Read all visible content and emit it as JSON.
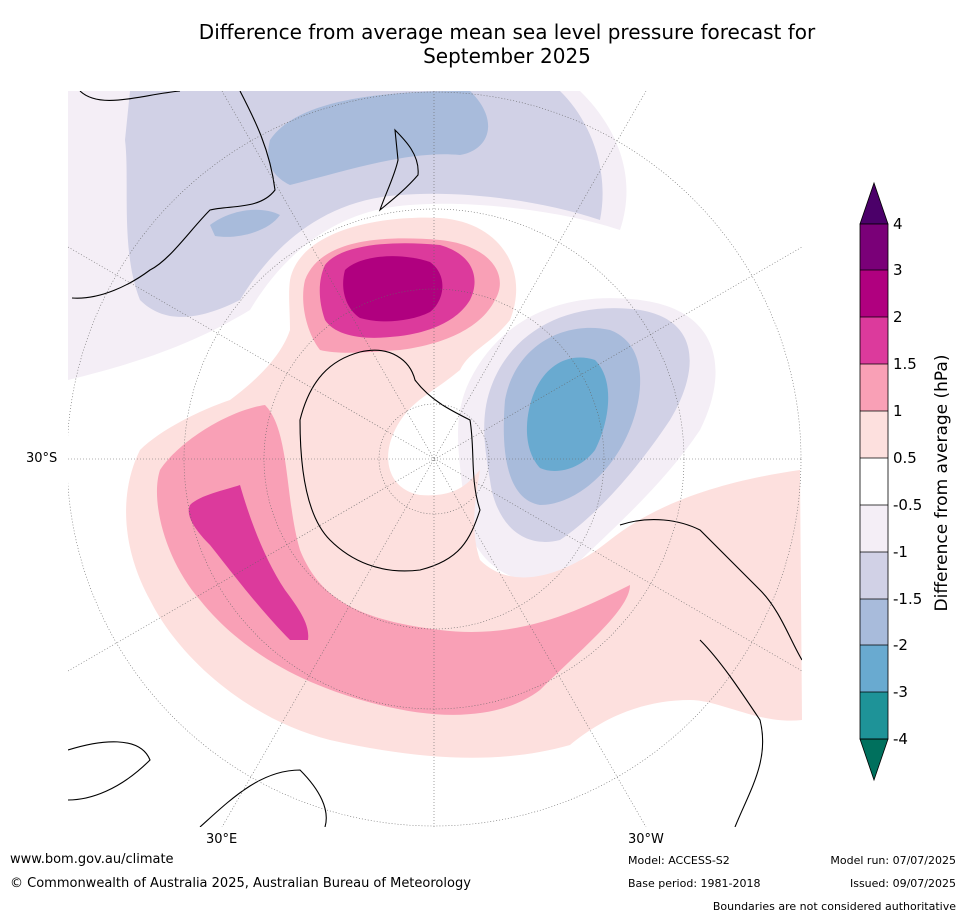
{
  "title_line1": "Difference from average mean sea level pressure forecast for",
  "title_line2": "September 2025",
  "map": {
    "latitude_label": "30°S",
    "longitude_labels": [
      "30°E",
      "30°W"
    ]
  },
  "colorbar": {
    "title": "Difference from average (hPa)",
    "ticks": [
      "4",
      "3",
      "2",
      "1.5",
      "1",
      "0.5",
      "-0.5",
      "-1",
      "-1.5",
      "-2",
      "-3",
      "-4"
    ],
    "colors": {
      "over": "#4b0069",
      "c3_4": "#7a0078",
      "c2_3": "#b0007f",
      "c15_2": "#dc3a9c",
      "c1_15": "#f9a0b6",
      "c05_1": "#fde0de",
      "neutral": "#ffffff",
      "cm1_m05": "#f4eef6",
      "cm15_m1": "#d1d1e6",
      "cm2_m15": "#a8bbdb",
      "cm3_m2": "#69aad0",
      "cm4_m3": "#1e9398",
      "under": "#00705d"
    }
  },
  "footer": {
    "website": "www.bom.gov.au/climate",
    "copyright": "© Commonwealth of Australia 2025, Australian Bureau of Meteorology",
    "model": "Model: ACCESS-S2",
    "base_period": "Base period: 1981-2018",
    "model_run": "Model run: 07/07/2025",
    "issued": "Issued: 09/07/2025",
    "disclaimer": "Boundaries are not considered authoritative"
  }
}
